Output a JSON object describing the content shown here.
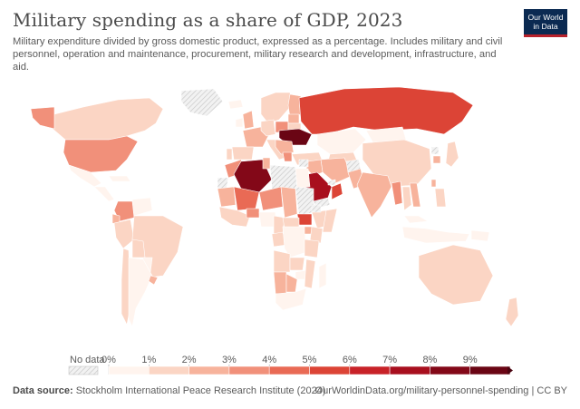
{
  "header": {
    "title": "Military spending as a share of GDP, 2023",
    "subtitle": "Military expenditure divided by gross domestic product, expressed as a percentage. Includes military and civil personnel, operation and maintenance, procurement, military research and development, infrastructure, and aid."
  },
  "logo": {
    "line1": "Our World",
    "line2": "in Data"
  },
  "legend": {
    "no_data_label": "No data",
    "ticks": [
      "0%",
      "1%",
      "2%",
      "3%",
      "4%",
      "5%",
      "6%",
      "7%",
      "8%",
      "9%"
    ],
    "colors": [
      "#fff4ee",
      "#fbd5c4",
      "#f7b39c",
      "#f1907a",
      "#e96a55",
      "#dc4436",
      "#c82228",
      "#a80f1e",
      "#830818",
      "#6a0514"
    ],
    "no_data_color": "#e4e4e4"
  },
  "footer": {
    "source_label": "Data source:",
    "source_text": "Stockholm International Peace Research Institute (2024)",
    "url_text": "OurWorldinData.org/military-personnel-spending | CC BY"
  },
  "chart_data": {
    "type": "choropleth",
    "title": "Military spending as a share of GDP, 2023",
    "unit": "% of GDP",
    "scale": [
      0,
      1,
      2,
      3,
      4,
      5,
      6,
      7,
      8,
      9
    ],
    "regions": [
      {
        "name": "Canada",
        "value": 1.3
      },
      {
        "name": "Alaska",
        "value": 3.4
      },
      {
        "name": "Greenland",
        "value": null
      },
      {
        "name": "United States",
        "value": 3.4
      },
      {
        "name": "Mexico",
        "value": 0.7
      },
      {
        "name": "Central America",
        "value": 0.6
      },
      {
        "name": "Caribbean",
        "value": 0.8
      },
      {
        "name": "Colombia",
        "value": 3.1
      },
      {
        "name": "Venezuela",
        "value": 0.8
      },
      {
        "name": "Ecuador",
        "value": 2.2
      },
      {
        "name": "Peru",
        "value": 1.1
      },
      {
        "name": "Brazil",
        "value": 1.1
      },
      {
        "name": "Bolivia",
        "value": 1.2
      },
      {
        "name": "Paraguay",
        "value": 0.9
      },
      {
        "name": "Chile",
        "value": 1.6
      },
      {
        "name": "Argentina",
        "value": 0.5
      },
      {
        "name": "Uruguay",
        "value": 2.1
      },
      {
        "name": "Iceland",
        "value": 0.2
      },
      {
        "name": "Scandinavia",
        "value": 1.6
      },
      {
        "name": "Finland",
        "value": 2.4
      },
      {
        "name": "United Kingdom",
        "value": 2.3
      },
      {
        "name": "Ireland",
        "value": 0.2
      },
      {
        "name": "France",
        "value": 2.1
      },
      {
        "name": "Spain",
        "value": 1.5
      },
      {
        "name": "Portugal",
        "value": 1.5
      },
      {
        "name": "Germany",
        "value": 1.5
      },
      {
        "name": "Italy",
        "value": 1.6
      },
      {
        "name": "Poland",
        "value": 3.8
      },
      {
        "name": "Baltic states",
        "value": 2.7
      },
      {
        "name": "Belarus",
        "value": 1.5
      },
      {
        "name": "Ukraine",
        "value": 37.0
      },
      {
        "name": "Balkans",
        "value": 2.2
      },
      {
        "name": "Greece",
        "value": 3.2
      },
      {
        "name": "Turkey",
        "value": 1.5
      },
      {
        "name": "Russia",
        "value": 5.9
      },
      {
        "name": "Kazakhstan",
        "value": 0.5
      },
      {
        "name": "Central Asia",
        "value": 1.0
      },
      {
        "name": "Mongolia",
        "value": 0.8
      },
      {
        "name": "China",
        "value": 1.7
      },
      {
        "name": "North Korea",
        "value": null
      },
      {
        "name": "South Korea",
        "value": 2.8
      },
      {
        "name": "Japan",
        "value": 1.2
      },
      {
        "name": "Taiwan",
        "value": 2.3
      },
      {
        "name": "Iran",
        "value": 2.1
      },
      {
        "name": "Iraq",
        "value": 2.1
      },
      {
        "name": "Syria",
        "value": null
      },
      {
        "name": "Israel",
        "value": 5.3
      },
      {
        "name": "Jordan",
        "value": 4.6
      },
      {
        "name": "Saudi Arabia",
        "value": 7.1
      },
      {
        "name": "Yemen",
        "value": null
      },
      {
        "name": "Oman",
        "value": 5.5
      },
      {
        "name": "UAE",
        "value": null
      },
      {
        "name": "Afghanistan",
        "value": null
      },
      {
        "name": "Pakistan",
        "value": 2.8
      },
      {
        "name": "India",
        "value": 2.4
      },
      {
        "name": "Myanmar",
        "value": 3.2
      },
      {
        "name": "Thailand",
        "value": 1.2
      },
      {
        "name": "Vietnam",
        "value": 2.3
      },
      {
        "name": "Malaysia",
        "value": 0.9
      },
      {
        "name": "Indonesia",
        "value": 0.7
      },
      {
        "name": "Philippines",
        "value": 1.0
      },
      {
        "name": "Papua New Guinea",
        "value": 0.3
      },
      {
        "name": "Australia",
        "value": 1.9
      },
      {
        "name": "New Zealand",
        "value": 1.1
      },
      {
        "name": "Morocco",
        "value": 3.9
      },
      {
        "name": "Western Sahara",
        "value": null
      },
      {
        "name": "Algeria",
        "value": 8.2
      },
      {
        "name": "Tunisia",
        "value": 2.4
      },
      {
        "name": "Libya",
        "value": null
      },
      {
        "name": "Egypt",
        "value": 0.8
      },
      {
        "name": "Mauritania",
        "value": 2.7
      },
      {
        "name": "Mali",
        "value": 4.4
      },
      {
        "name": "Niger",
        "value": 3.2
      },
      {
        "name": "Chad",
        "value": 2.7
      },
      {
        "name": "Sudan",
        "value": null
      },
      {
        "name": "South Sudan",
        "value": 5.4
      },
      {
        "name": "Ethiopia",
        "value": 1.0
      },
      {
        "name": "Somalia",
        "value": 1.2
      },
      {
        "name": "Eritrea",
        "value": null
      },
      {
        "name": "West Africa coast",
        "value": 1.0
      },
      {
        "name": "Burkina Faso",
        "value": 3.8
      },
      {
        "name": "Nigeria",
        "value": 0.6
      },
      {
        "name": "Cameroon",
        "value": 1.0
      },
      {
        "name": "Central African Republic",
        "value": 1.8
      },
      {
        "name": "Gabon and Congo",
        "value": 1.4
      },
      {
        "name": "DR Congo",
        "value": 0.7
      },
      {
        "name": "Uganda",
        "value": 2.0
      },
      {
        "name": "Kenya",
        "value": 1.0
      },
      {
        "name": "Tanzania",
        "value": 1.0
      },
      {
        "name": "Angola",
        "value": 1.1
      },
      {
        "name": "Zambia",
        "value": 1.0
      },
      {
        "name": "Zimbabwe",
        "value": 0.4
      },
      {
        "name": "Mozambique",
        "value": 1.1
      },
      {
        "name": "Namibia",
        "value": 2.9
      },
      {
        "name": "Botswana",
        "value": 2.7
      },
      {
        "name": "South Africa",
        "value": 0.7
      },
      {
        "name": "Madagascar",
        "value": 0.6
      }
    ]
  }
}
